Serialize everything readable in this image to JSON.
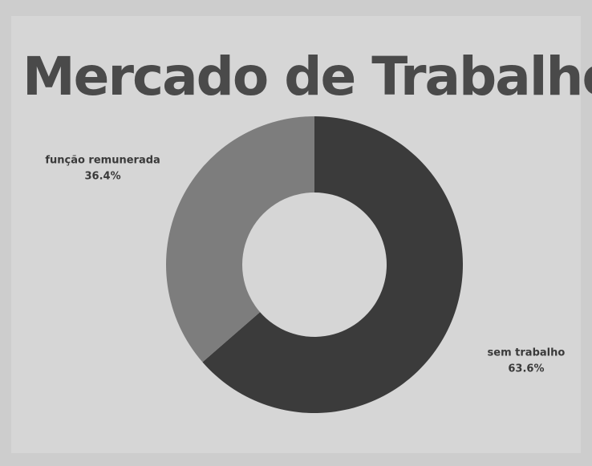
{
  "chart_data": {
    "type": "pie",
    "donut": true,
    "title": "Mercado de Trabalho",
    "categories": [
      "sem trabalho",
      "função remunerada"
    ],
    "values": [
      63.6,
      36.4
    ],
    "value_labels": [
      "63.6%",
      "36.4%"
    ],
    "colors": [
      "#3b3b3b",
      "#7d7d7d"
    ]
  }
}
